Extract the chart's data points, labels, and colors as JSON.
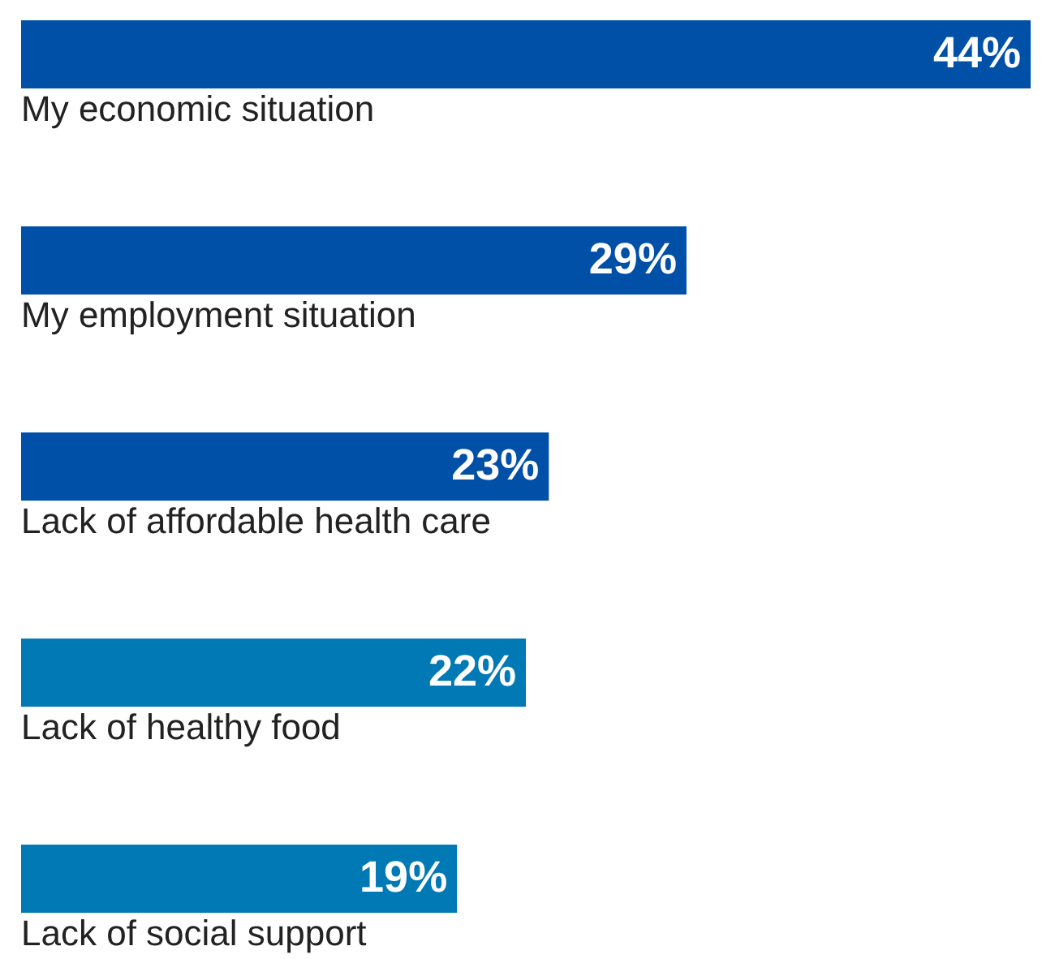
{
  "chart_data": {
    "type": "bar",
    "orientation": "horizontal",
    "categories": [
      "My economic situation",
      "My employment situation",
      "Lack of affordable health care",
      "Lack of healthy food",
      "Lack of social support"
    ],
    "values": [
      44,
      29,
      23,
      22,
      19
    ],
    "colors": [
      "#0050a8",
      "#0050a8",
      "#0050a8",
      "#0079b5",
      "#0079b5"
    ],
    "value_labels": [
      "44%",
      "29%",
      "23%",
      "22%",
      "19%"
    ]
  }
}
